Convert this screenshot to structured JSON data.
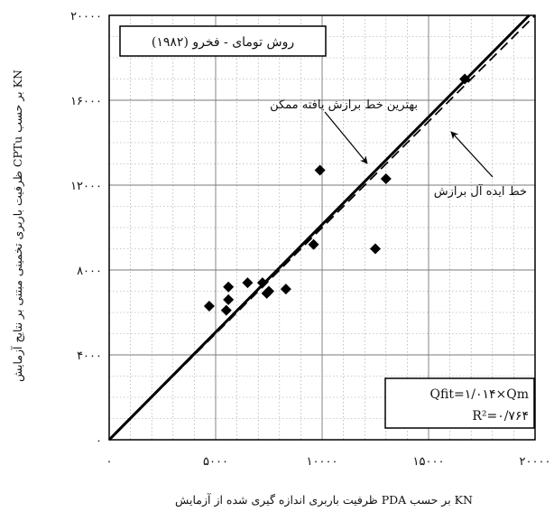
{
  "chart_data": {
    "type": "scatter",
    "title": "روش تومای - فخرو (۱۹۸۲)",
    "xlabel": "ظرفیت باربری اندازه گیری شده از آزمایش PDA بر حسب KN",
    "ylabel": "ظرفیت باربری تخمینی مبتنی بر نتایج آزمایش CPTu بر حسب KN",
    "xlim": [
      0,
      20000
    ],
    "ylim": [
      0,
      20000
    ],
    "x_ticks": [
      0,
      5000,
      10000,
      15000,
      20000
    ],
    "x_tick_labels": [
      "۰",
      "۵۰۰۰",
      "۱۰۰۰۰",
      "۱۵۰۰۰",
      "۲۰۰۰۰"
    ],
    "y_ticks": [
      0,
      4000,
      8000,
      12000,
      16000,
      20000
    ],
    "y_tick_labels": [
      "۰",
      "۴۰۰۰",
      "۸۰۰۰",
      "۱۲۰۰۰",
      "۱۶۰۰۰",
      "۲۰۰۰۰"
    ],
    "grid": true,
    "minor_grid": true,
    "points": [
      {
        "x": 4700,
        "y": 6300
      },
      {
        "x": 5500,
        "y": 6100
      },
      {
        "x": 5600,
        "y": 6600
      },
      {
        "x": 5600,
        "y": 7200
      },
      {
        "x": 6500,
        "y": 7400
      },
      {
        "x": 7200,
        "y": 7400
      },
      {
        "x": 7400,
        "y": 6900
      },
      {
        "x": 7500,
        "y": 7000
      },
      {
        "x": 8300,
        "y": 7100
      },
      {
        "x": 9600,
        "y": 9200
      },
      {
        "x": 9900,
        "y": 12700
      },
      {
        "x": 12500,
        "y": 9000
      },
      {
        "x": 13000,
        "y": 12300
      },
      {
        "x": 16700,
        "y": 17000
      }
    ],
    "lines": [
      {
        "name": "بهترین خط برازش یافته ممکن",
        "slope": 1.014,
        "style": "solid"
      },
      {
        "name": "خط ایده آل برازش",
        "slope": 1.0,
        "style": "dashed"
      }
    ],
    "equation": "Qfit=۱/۰۱۴×Qm",
    "r_squared": "R²=۰/۷۶۴",
    "annotations": {
      "best_fit": "بهترین خط برازش یافته ممکن",
      "ideal": "خط ایده آل برازش"
    },
    "colors": {
      "lines": "#000000",
      "grid": "#9a9a9a",
      "points": "#000000"
    }
  }
}
